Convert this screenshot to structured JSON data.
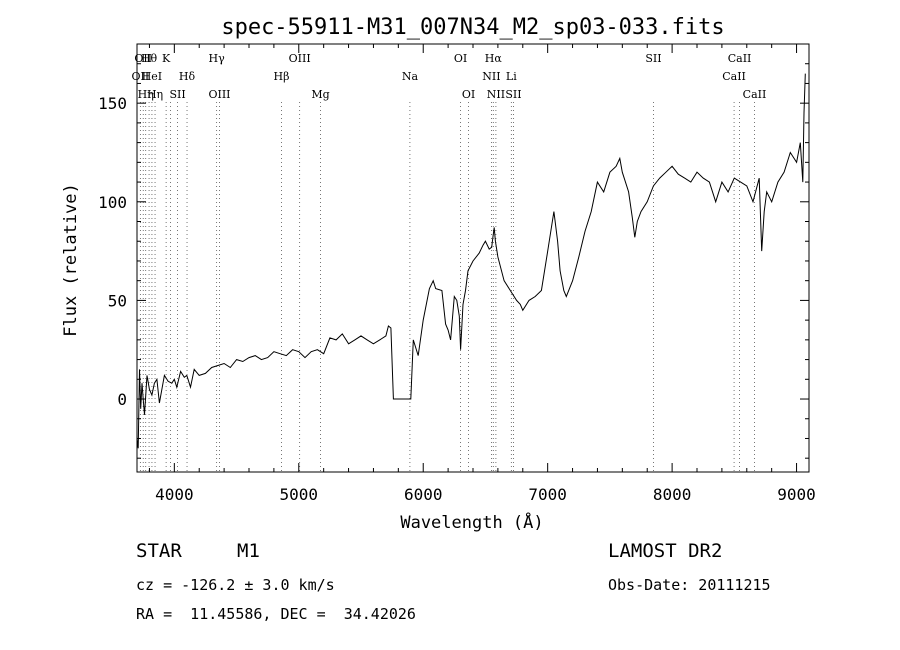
{
  "chart_data": {
    "type": "line",
    "title": "spec-55911-M31_007N34_M2_sp03-033.fits",
    "xlabel": "Wavelength (Å)",
    "ylabel": "Flux (relative)",
    "xlim": [
      3700,
      9100
    ],
    "ylim": [
      -37,
      180
    ],
    "xticks": [
      4000,
      5000,
      6000,
      7000,
      8000,
      9000
    ],
    "yticks": [
      0,
      50,
      100,
      150
    ],
    "grid": false,
    "series": [
      {
        "x": [
          3700,
          3710,
          3720,
          3730,
          3740,
          3750,
          3760,
          3780,
          3800,
          3820,
          3840,
          3860,
          3880,
          3900,
          3920,
          3950,
          3980,
          4000,
          4020,
          4050,
          4080,
          4100,
          4130,
          4160,
          4200,
          4250,
          4300,
          4350,
          4400,
          4450,
          4500,
          4550,
          4600,
          4650,
          4700,
          4750,
          4800,
          4850,
          4900,
          4950,
          5000,
          5050,
          5100,
          5150,
          5200,
          5250,
          5300,
          5350,
          5400,
          5450,
          5500,
          5550,
          5600,
          5650,
          5700,
          5720,
          5740,
          5760,
          5900,
          5920,
          5960,
          6000,
          6050,
          6080,
          6100,
          6150,
          6180,
          6200,
          6220,
          6250,
          6270,
          6290,
          6300,
          6320,
          6340,
          6360,
          6400,
          6450,
          6480,
          6500,
          6530,
          6550,
          6560,
          6570,
          6580,
          6600,
          6650,
          6700,
          6750,
          6780,
          6800,
          6850,
          6900,
          6950,
          7000,
          7050,
          7080,
          7100,
          7130,
          7150,
          7200,
          7250,
          7300,
          7350,
          7400,
          7450,
          7500,
          7550,
          7580,
          7600,
          7650,
          7680,
          7700,
          7720,
          7750,
          7800,
          7850,
          7900,
          7950,
          8000,
          8050,
          8100,
          8150,
          8200,
          8250,
          8300,
          8350,
          8400,
          8450,
          8500,
          8550,
          8600,
          8650,
          8700,
          8720,
          8740,
          8760,
          8800,
          8850,
          8900,
          8950,
          9000,
          9030,
          9050,
          9060,
          9070
        ],
        "y": [
          -20,
          -25,
          15,
          -5,
          8,
          0,
          -8,
          12,
          5,
          2,
          8,
          10,
          -2,
          5,
          12,
          9,
          8,
          10,
          6,
          14,
          11,
          12,
          6,
          15,
          12,
          13,
          16,
          17,
          18,
          16,
          20,
          19,
          21,
          22,
          20,
          21,
          24,
          23,
          22,
          25,
          24,
          21,
          24,
          25,
          23,
          31,
          30,
          33,
          28,
          30,
          32,
          30,
          28,
          30,
          32,
          37,
          36,
          0,
          0,
          30,
          22,
          40,
          56,
          60,
          56,
          55,
          38,
          35,
          30,
          52,
          50,
          42,
          25,
          48,
          55,
          65,
          70,
          74,
          78,
          80,
          76,
          77,
          82,
          87,
          80,
          72,
          60,
          55,
          50,
          48,
          45,
          50,
          52,
          55,
          75,
          95,
          80,
          65,
          55,
          52,
          60,
          72,
          85,
          95,
          110,
          105,
          115,
          118,
          122,
          115,
          105,
          92,
          82,
          90,
          95,
          100,
          108,
          112,
          115,
          118,
          114,
          112,
          110,
          115,
          112,
          110,
          100,
          110,
          105,
          112,
          110,
          108,
          100,
          112,
          75,
          95,
          105,
          100,
          110,
          115,
          125,
          120,
          130,
          110,
          145,
          165
        ]
      }
    ],
    "line_labels": [
      {
        "wave": 3727,
        "row": 2,
        "text": "OII"
      },
      {
        "wave": 3750,
        "row": 1,
        "text": "OII"
      },
      {
        "wave": 3770,
        "row": 3,
        "text": "Hη"
      },
      {
        "wave": 3797,
        "row": 1,
        "text": "Hθ"
      },
      {
        "wave": 3820,
        "row": 2,
        "text": "HeI"
      },
      {
        "wave": 3845,
        "row": 3,
        "text": "Hη"
      },
      {
        "wave": 3934,
        "row": 1,
        "text": "K"
      },
      {
        "wave": 3969,
        "row": 1,
        "text": ""
      },
      {
        "wave": 4026,
        "row": 3,
        "text": "SII"
      },
      {
        "wave": 4102,
        "row": 2,
        "text": "Hδ"
      },
      {
        "wave": 4340,
        "row": 1,
        "text": "Hγ"
      },
      {
        "wave": 4363,
        "row": 3,
        "text": "OIII"
      },
      {
        "wave": 4861,
        "row": 2,
        "text": "Hβ"
      },
      {
        "wave": 5007,
        "row": 1,
        "text": "OIII"
      },
      {
        "wave": 5175,
        "row": 3,
        "text": "Mg"
      },
      {
        "wave": 5893,
        "row": 2,
        "text": "Na"
      },
      {
        "wave": 6300,
        "row": 1,
        "text": "OI"
      },
      {
        "wave": 6364,
        "row": 3,
        "text": "OI"
      },
      {
        "wave": 6563,
        "row": 1,
        "text": "Hα"
      },
      {
        "wave": 6548,
        "row": 2,
        "text": "NII"
      },
      {
        "wave": 6584,
        "row": 3,
        "text": "NII"
      },
      {
        "wave": 6708,
        "row": 2,
        "text": "Li"
      },
      {
        "wave": 6725,
        "row": 3,
        "text": "SII"
      },
      {
        "wave": 7850,
        "row": 1,
        "text": "SII"
      },
      {
        "wave": 8498,
        "row": 2,
        "text": "CaII"
      },
      {
        "wave": 8542,
        "row": 1,
        "text": "CaII"
      },
      {
        "wave": 8662,
        "row": 3,
        "text": "CaII"
      }
    ]
  },
  "info": {
    "object_type": "STAR",
    "subclass": "M1",
    "survey": "LAMOST DR2",
    "redshift": "cz = -126.2 ± 3.0 km/s",
    "obs_date": "Obs-Date: 20111215",
    "coords": "RA =  11.45586, DEC =  34.42026"
  }
}
